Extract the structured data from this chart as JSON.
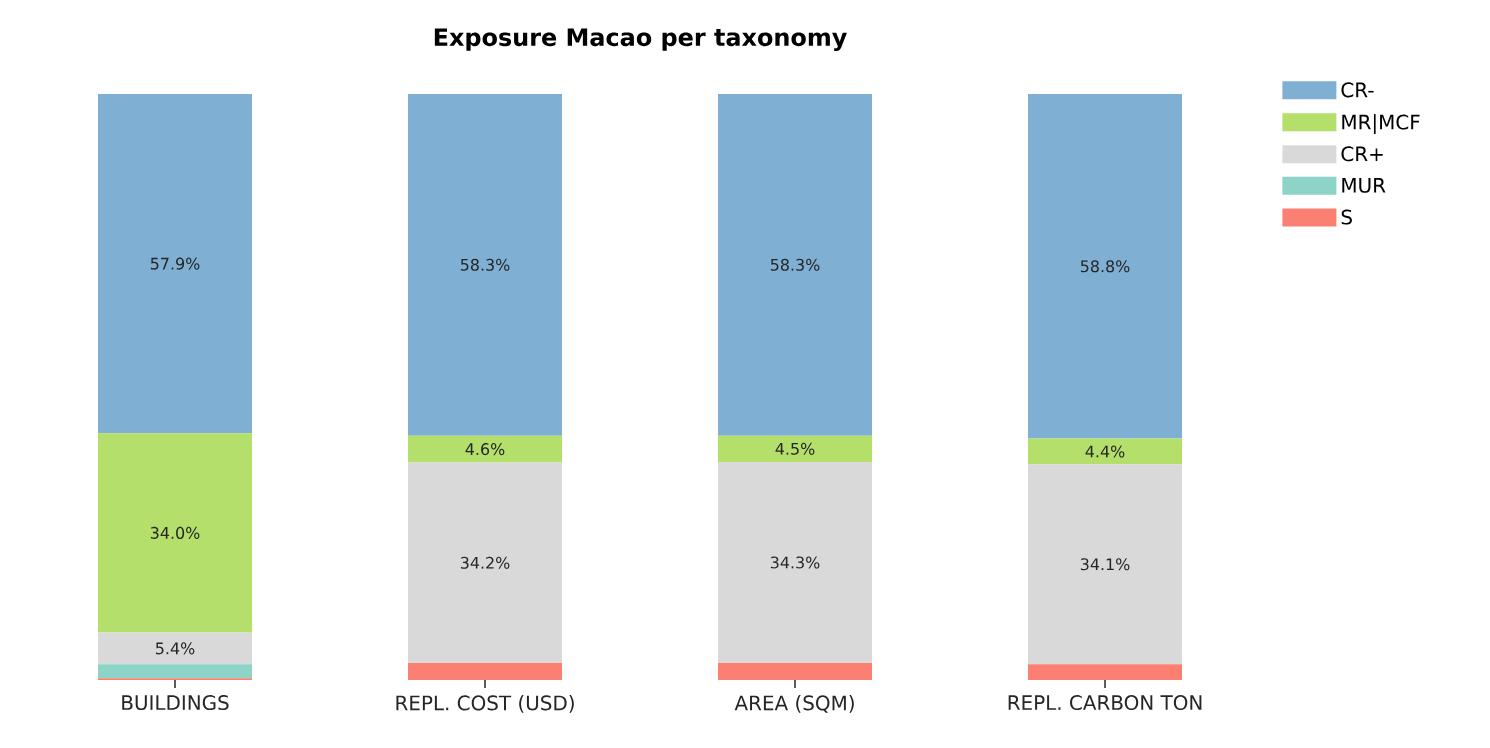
{
  "chart_data": {
    "type": "bar",
    "title": "Exposure Macao per taxonomy",
    "stacked": true,
    "legend": "top right",
    "categories": [
      "BUILDINGS",
      "REPL. COST (USD)",
      "AREA (SQM)",
      "REPL. CARBON TON"
    ],
    "series": [
      {
        "name": "S",
        "color": "#fb8072",
        "values": [
          0.3,
          2.9,
          2.9,
          2.7
        ],
        "value_labels": [
          null,
          null,
          null,
          null
        ]
      },
      {
        "name": "MUR",
        "color": "#8dd3c7",
        "values": [
          2.4,
          0,
          0,
          0
        ],
        "value_labels": [
          null,
          null,
          null,
          null
        ]
      },
      {
        "name": "CR+",
        "color": "#d9d9d9",
        "values": [
          5.4,
          34.2,
          34.3,
          34.1
        ],
        "value_labels": [
          "5.4%",
          "34.2%",
          "34.3%",
          "34.1%"
        ]
      },
      {
        "name": "MR|MCF",
        "color": "#b3df6a",
        "values": [
          34.0,
          4.6,
          4.5,
          4.4
        ],
        "value_labels": [
          "34.0%",
          "4.6%",
          "4.5%",
          "4.4%"
        ]
      },
      {
        "name": "CR-",
        "color": "#7fafd3",
        "values": [
          57.9,
          58.3,
          58.3,
          58.8
        ],
        "value_labels": [
          "57.9%",
          "58.3%",
          "58.3%",
          "58.8%"
        ]
      }
    ]
  }
}
